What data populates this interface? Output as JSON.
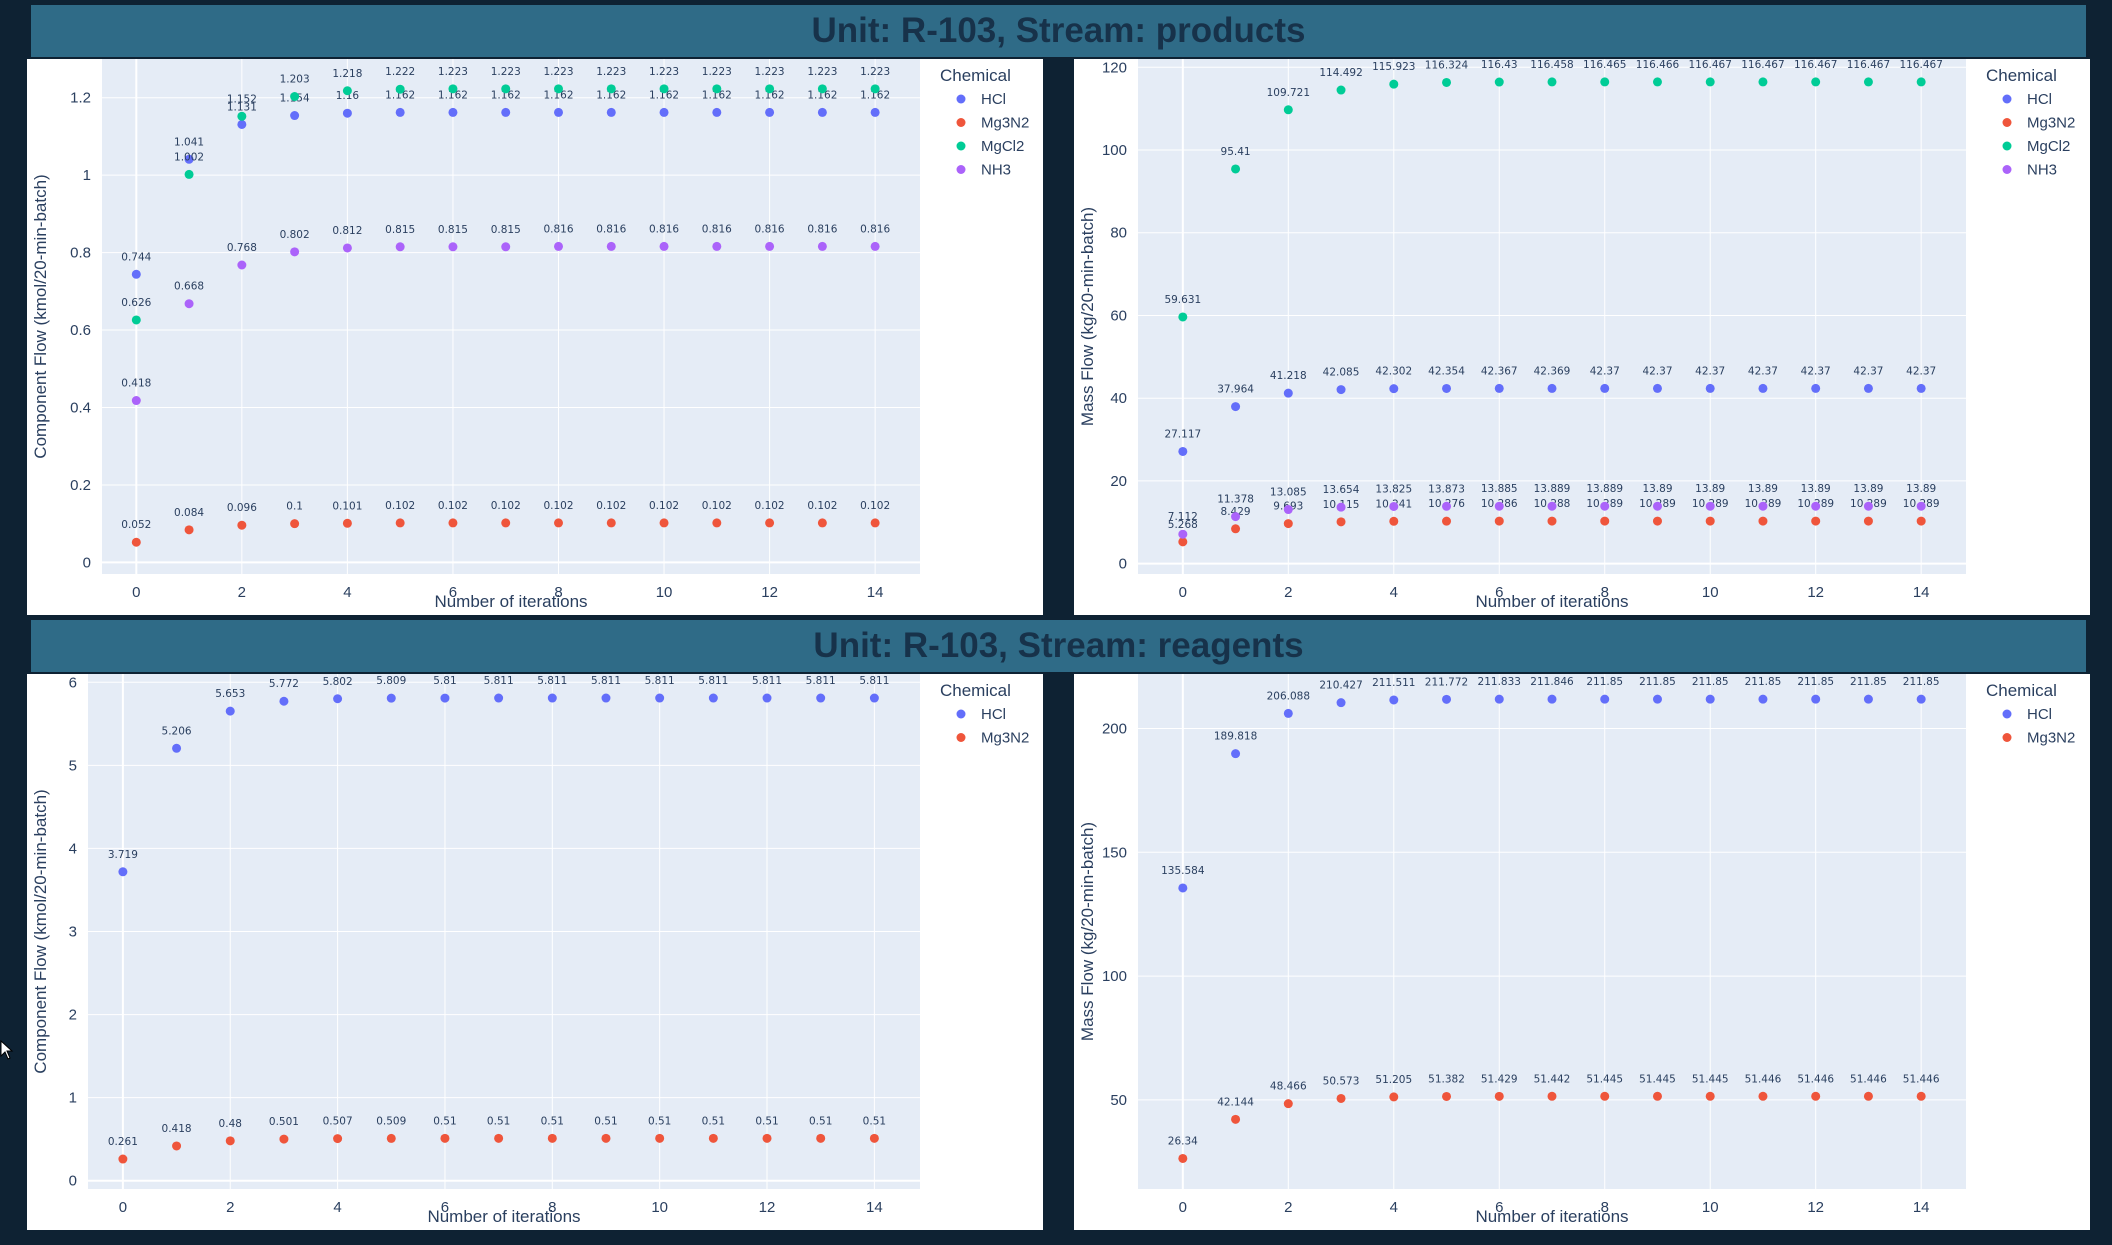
{
  "banners": {
    "top": "Unit: R-103, Stream: products",
    "bottom": "Unit: R-103, Stream: reagents"
  },
  "colors": {
    "plot_bg": "#e5ecf6",
    "HCl": "#636efa",
    "Mg3N2": "#ef553b",
    "MgCl2": "#00cc96",
    "NH3": "#ab63fa"
  },
  "chart_data": [
    {
      "type": "scatter",
      "title": "products - component flow",
      "xlabel": "Number of iterations",
      "ylabel": "Component Flow (kmol/20-min-batch)",
      "legend_title": "Chemical",
      "xlim": [
        -0.65,
        14.85
      ],
      "ylim": [
        -0.03,
        1.3
      ],
      "xticks": [
        0,
        2,
        4,
        6,
        8,
        10,
        12,
        14
      ],
      "yticks": [
        0,
        0.2,
        0.4,
        0.6,
        0.8,
        1,
        1.2
      ],
      "ytick_labels": [
        "0",
        "0.2",
        "0.4",
        "0.6",
        "0.8",
        "1",
        "1.2"
      ],
      "x": [
        0,
        1,
        2,
        3,
        4,
        5,
        6,
        7,
        8,
        9,
        10,
        11,
        12,
        13,
        14
      ],
      "series": [
        {
          "name": "HCl",
          "values": [
            0.744,
            1.041,
            1.131,
            1.154,
            1.16,
            1.162,
            1.162,
            1.162,
            1.162,
            1.162,
            1.162,
            1.162,
            1.162,
            1.162,
            1.162
          ],
          "labels": [
            "0.744",
            "1.041",
            "1.131",
            "1.154",
            "1.16",
            "1.162",
            "1.162",
            "1.162",
            "1.162",
            "1.162",
            "1.162",
            "1.162",
            "1.162",
            "1.162",
            "1.162"
          ]
        },
        {
          "name": "Mg3N2",
          "values": [
            0.052,
            0.084,
            0.096,
            0.1,
            0.101,
            0.102,
            0.102,
            0.102,
            0.102,
            0.102,
            0.102,
            0.102,
            0.102,
            0.102,
            0.102
          ],
          "labels": [
            "0.052",
            "0.084",
            "0.096",
            "0.1",
            "0.101",
            "0.102",
            "0.102",
            "0.102",
            "0.102",
            "0.102",
            "0.102",
            "0.102",
            "0.102",
            "0.102",
            "0.102"
          ]
        },
        {
          "name": "MgCl2",
          "values": [
            0.626,
            1.002,
            1.152,
            1.203,
            1.218,
            1.222,
            1.223,
            1.223,
            1.223,
            1.223,
            1.223,
            1.223,
            1.223,
            1.223,
            1.223
          ],
          "labels": [
            "0.626",
            "1.002",
            "1.152",
            "1.203",
            "1.218",
            "1.222",
            "1.223",
            "1.223",
            "1.223",
            "1.223",
            "1.223",
            "1.223",
            "1.223",
            "1.223",
            "1.223"
          ]
        },
        {
          "name": "NH3",
          "values": [
            0.418,
            0.668,
            0.768,
            0.802,
            0.812,
            0.815,
            0.815,
            0.815,
            0.816,
            0.816,
            0.816,
            0.816,
            0.816,
            0.816,
            0.816
          ],
          "labels": [
            "0.418",
            "0.668",
            "0.768",
            "0.802",
            "0.812",
            "0.815",
            "0.815",
            "0.815",
            "0.816",
            "0.816",
            "0.816",
            "0.816",
            "0.816",
            "0.816",
            "0.816"
          ]
        }
      ]
    },
    {
      "type": "scatter",
      "title": "products - mass flow",
      "xlabel": "Number of iterations",
      "ylabel": "Mass Flow (kg/20-min-batch)",
      "legend_title": "Chemical",
      "xlim": [
        -0.85,
        14.85
      ],
      "ylim": [
        -2.5,
        122
      ],
      "xticks": [
        0,
        2,
        4,
        6,
        8,
        10,
        12,
        14
      ],
      "yticks": [
        0,
        20,
        40,
        60,
        80,
        100,
        120
      ],
      "ytick_labels": [
        "0",
        "20",
        "40",
        "60",
        "80",
        "100",
        "120"
      ],
      "x": [
        0,
        1,
        2,
        3,
        4,
        5,
        6,
        7,
        8,
        9,
        10,
        11,
        12,
        13,
        14
      ],
      "series": [
        {
          "name": "HCl",
          "values": [
            27.117,
            37.964,
            41.218,
            42.085,
            42.302,
            42.354,
            42.367,
            42.369,
            42.37,
            42.37,
            42.37,
            42.37,
            42.37,
            42.37,
            42.37
          ],
          "labels": [
            "27.117",
            "37.964",
            "41.218",
            "42.085",
            "42.302",
            "42.354",
            "42.367",
            "42.369",
            "42.37",
            "42.37",
            "42.37",
            "42.37",
            "42.37",
            "42.37",
            "42.37"
          ]
        },
        {
          "name": "Mg3N2",
          "values": [
            5.268,
            8.429,
            9.693,
            10.115,
            10.241,
            10.276,
            10.286,
            10.288,
            10.289,
            10.289,
            10.289,
            10.289,
            10.289,
            10.289,
            10.289
          ],
          "labels": [
            "5.268",
            "8.429",
            "9.693",
            "10.115",
            "10.241",
            "10.276",
            "10.286",
            "10.288",
            "10.289",
            "10.289",
            "10.289",
            "10.289",
            "10.289",
            "10.289",
            "10.289"
          ]
        },
        {
          "name": "MgCl2",
          "values": [
            59.631,
            95.41,
            109.721,
            114.492,
            115.923,
            116.324,
            116.43,
            116.458,
            116.465,
            116.466,
            116.467,
            116.467,
            116.467,
            116.467,
            116.467
          ],
          "labels": [
            "59.631",
            "95.41",
            "109.721",
            "114.492",
            "115.923",
            "116.324",
            "116.43",
            "116.458",
            "116.465",
            "116.466",
            "116.467",
            "116.467",
            "116.467",
            "116.467",
            "116.467"
          ]
        },
        {
          "name": "NH3",
          "values": [
            7.112,
            11.378,
            13.085,
            13.654,
            13.825,
            13.873,
            13.885,
            13.889,
            13.889,
            13.89,
            13.89,
            13.89,
            13.89,
            13.89,
            13.89
          ],
          "labels": [
            "7.112",
            "11.378",
            "13.085",
            "13.654",
            "13.825",
            "13.873",
            "13.885",
            "13.889",
            "13.889",
            "13.89",
            "13.89",
            "13.89",
            "13.89",
            "13.89",
            "13.89"
          ]
        }
      ]
    },
    {
      "type": "scatter",
      "title": "reagents - component flow",
      "xlabel": "Number of iterations",
      "ylabel": "Component Flow (kmol/20-min-batch)",
      "legend_title": "Chemical",
      "xlim": [
        -0.65,
        14.85
      ],
      "ylim": [
        -0.1,
        6.1
      ],
      "xticks": [
        0,
        2,
        4,
        6,
        8,
        10,
        12,
        14
      ],
      "yticks": [
        0,
        1,
        2,
        3,
        4,
        5,
        6
      ],
      "ytick_labels": [
        "0",
        "1",
        "2",
        "3",
        "4",
        "5",
        "6"
      ],
      "x": [
        0,
        1,
        2,
        3,
        4,
        5,
        6,
        7,
        8,
        9,
        10,
        11,
        12,
        13,
        14
      ],
      "series": [
        {
          "name": "HCl",
          "values": [
            3.719,
            5.206,
            5.653,
            5.772,
            5.802,
            5.809,
            5.81,
            5.811,
            5.811,
            5.811,
            5.811,
            5.811,
            5.811,
            5.811,
            5.811
          ],
          "labels": [
            "3.719",
            "5.206",
            "5.653",
            "5.772",
            "5.802",
            "5.809",
            "5.81",
            "5.811",
            "5.811",
            "5.811",
            "5.811",
            "5.811",
            "5.811",
            "5.811",
            "5.811"
          ]
        },
        {
          "name": "Mg3N2",
          "values": [
            0.261,
            0.418,
            0.48,
            0.501,
            0.507,
            0.509,
            0.51,
            0.51,
            0.51,
            0.51,
            0.51,
            0.51,
            0.51,
            0.51,
            0.51
          ],
          "labels": [
            "0.261",
            "0.418",
            "0.48",
            "0.501",
            "0.507",
            "0.509",
            "0.51",
            "0.51",
            "0.51",
            "0.51",
            "0.51",
            "0.51",
            "0.51",
            "0.51",
            "0.51"
          ]
        }
      ]
    },
    {
      "type": "scatter",
      "title": "reagents - mass flow",
      "xlabel": "Number of iterations",
      "ylabel": "Mass Flow (kg/20-min-batch)",
      "legend_title": "Chemical",
      "xlim": [
        -0.85,
        14.85
      ],
      "ylim": [
        14,
        222
      ],
      "xticks": [
        0,
        2,
        4,
        6,
        8,
        10,
        12,
        14
      ],
      "yticks": [
        50,
        100,
        150,
        200
      ],
      "ytick_labels": [
        "50",
        "100",
        "150",
        "200"
      ],
      "x": [
        0,
        1,
        2,
        3,
        4,
        5,
        6,
        7,
        8,
        9,
        10,
        11,
        12,
        13,
        14
      ],
      "series": [
        {
          "name": "HCl",
          "values": [
            135.584,
            189.818,
            206.088,
            210.427,
            211.511,
            211.772,
            211.833,
            211.846,
            211.85,
            211.85,
            211.85,
            211.85,
            211.85,
            211.85,
            211.85
          ],
          "labels": [
            "135.584",
            "189.818",
            "206.088",
            "210.427",
            "211.511",
            "211.772",
            "211.833",
            "211.846",
            "211.85",
            "211.85",
            "211.85",
            "211.85",
            "211.85",
            "211.85",
            "211.85"
          ]
        },
        {
          "name": "Mg3N2",
          "values": [
            26.34,
            42.144,
            48.466,
            50.573,
            51.205,
            51.382,
            51.429,
            51.442,
            51.445,
            51.445,
            51.445,
            51.446,
            51.446,
            51.446,
            51.446
          ],
          "labels": [
            "26.34",
            "42.144",
            "48.466",
            "50.573",
            "51.205",
            "51.382",
            "51.429",
            "51.442",
            "51.445",
            "51.445",
            "51.445",
            "51.446",
            "51.446",
            "51.446",
            "51.446"
          ]
        }
      ]
    }
  ]
}
